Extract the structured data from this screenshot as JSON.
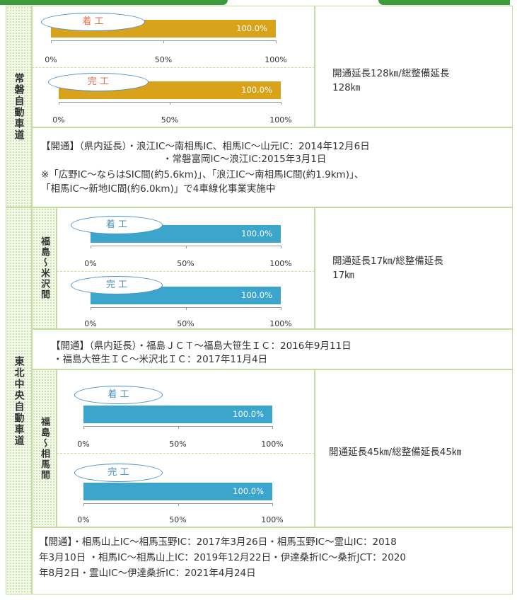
{
  "sections": [
    {
      "road": "常磐自動車道",
      "blocks": [
        {
          "bars": [
            {
              "label": "着 工",
              "value": 100,
              "value_label": "100.0%",
              "color": "#d9a21b",
              "xlim": [
                0,
                100
              ],
              "xticks": [
                {
                  "value": 0,
                  "label": "0%"
                },
                {
                  "value": 50,
                  "label": "50%"
                },
                {
                  "value": 100,
                  "label": "100%"
                }
              ]
            },
            {
              "label": "完 工",
              "value": 100,
              "value_label": "100.0%",
              "color": "#d9a21b",
              "xlim": [
                0,
                100
              ],
              "xticks": [
                {
                  "value": 0,
                  "label": "0%"
                },
                {
                  "value": 50,
                  "label": "50%"
                },
                {
                  "value": 100,
                  "label": "100%"
                }
              ]
            }
          ],
          "length": [
            "開通延長128㎞/総整備延長",
            "128㎞"
          ],
          "notes": [
            "【開通】（県内延長）・浪江IC～南相馬IC、相馬IC～山元IC：2014年12月6日",
            "・常磐富岡IC～浪江IC:2015年3月1日",
            "※「広野IC～ならはSIC間(約5.6km)」、「浪江IC～南相馬IC間(約1.9km)」、",
            "「相馬IC～新地IC間(約6.0km)」で4車線化事業実施中"
          ]
        }
      ]
    },
    {
      "road": "東北中央自動車道",
      "blocks": [
        {
          "segment": "福島～米沢間",
          "bars": [
            {
              "label": "着 工",
              "value": 100,
              "value_label": "100.0%",
              "color": "#3ba5cb",
              "xlim": [
                0,
                100
              ],
              "xticks": [
                {
                  "value": 0,
                  "label": "0%"
                },
                {
                  "value": 50,
                  "label": "50%"
                },
                {
                  "value": 100,
                  "label": "100%"
                }
              ]
            },
            {
              "label": "完 工",
              "value": 100,
              "value_label": "100.0%",
              "color": "#3ba5cb",
              "xlim": [
                0,
                100
              ],
              "xticks": [
                {
                  "value": 0,
                  "label": "0%"
                },
                {
                  "value": 50,
                  "label": "50%"
                },
                {
                  "value": 100,
                  "label": "100%"
                }
              ]
            }
          ],
          "length": [
            "開通延長17㎞/総整備延長",
            "17㎞"
          ],
          "notes": [
            "【開通】（県内延長）・福島ＪＣＴ～福島大笹生ＩＣ：2016年9月11日",
            "・福島大笹生ＩＣ～米沢北ＩＣ：2017年11月4日"
          ]
        },
        {
          "segment": "福島～相馬間",
          "bars": [
            {
              "label": "着 工",
              "value": 100,
              "value_label": "100.0%",
              "color": "#3ba5cb",
              "xlim": [
                0,
                100
              ],
              "xticks": [
                {
                  "value": 0,
                  "label": "0%"
                },
                {
                  "value": 50,
                  "label": "50%"
                },
                {
                  "value": 100,
                  "label": "100%"
                }
              ]
            },
            {
              "label": "完 工",
              "value": 100,
              "value_label": "100.0%",
              "color": "#3ba5cb",
              "xlim": [
                0,
                100
              ],
              "xticks": [
                {
                  "value": 0,
                  "label": "0%"
                },
                {
                  "value": 50,
                  "label": "50%"
                },
                {
                  "value": 100,
                  "label": "100%"
                }
              ]
            }
          ],
          "length": [
            "開通延長45㎞/総整備延長45㎞"
          ],
          "notes": [
            "【開通】・相馬山上IC～相馬玉野IC：2017年3月26日・相馬玉野IC～霊山IC：2018",
            "年3月10日 ・相馬IC～相馬山上IC：2019年12月22日・伊達桑折IC～桑折JCT：2020",
            "年8月2日・霊山IC～伊達桑折IC：2021年4月24日"
          ]
        }
      ]
    }
  ]
}
